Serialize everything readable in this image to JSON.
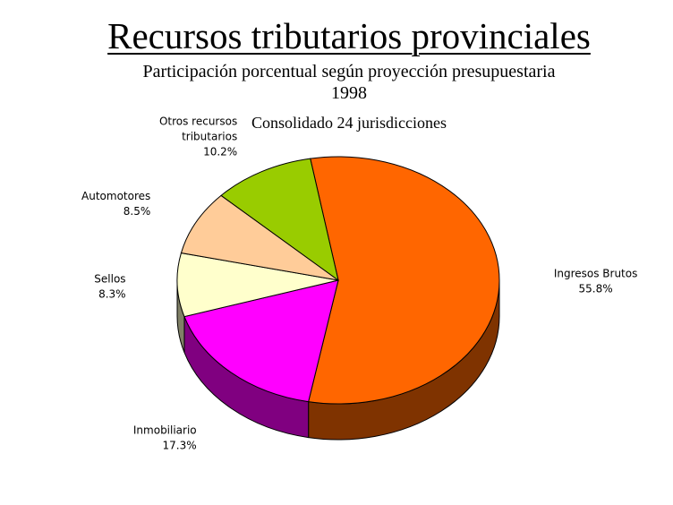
{
  "chart_data": {
    "type": "pie",
    "title": "Recursos tributarios provinciales",
    "subtitle_lines": [
      "Participación porcentual según proyección presupuestaria",
      "1998"
    ],
    "note": "Consolidado 24 jurisdicciones",
    "slices": [
      {
        "label_lines": [
          "Ingresos Brutos"
        ],
        "value": 55.8,
        "value_label": "55.8%",
        "color": "#ff6600",
        "side_color": "#7f3300"
      },
      {
        "label_lines": [
          "Inmobiliario"
        ],
        "value": 17.3,
        "value_label": "17.3%",
        "color": "#ff00ff",
        "side_color": "#800080"
      },
      {
        "label_lines": [
          "Sellos"
        ],
        "value": 8.3,
        "value_label": "8.3%",
        "color": "#ffffcc",
        "side_color": "#808066"
      },
      {
        "label_lines": [
          "Automotores"
        ],
        "value": 8.5,
        "value_label": "8.5%",
        "color": "#ffcc99",
        "side_color": "#80664c"
      },
      {
        "label_lines": [
          "Otros recursos",
          "tributarios"
        ],
        "value": 10.2,
        "value_label": "10.2%",
        "color": "#99cc00",
        "side_color": "#4c6600"
      }
    ]
  }
}
